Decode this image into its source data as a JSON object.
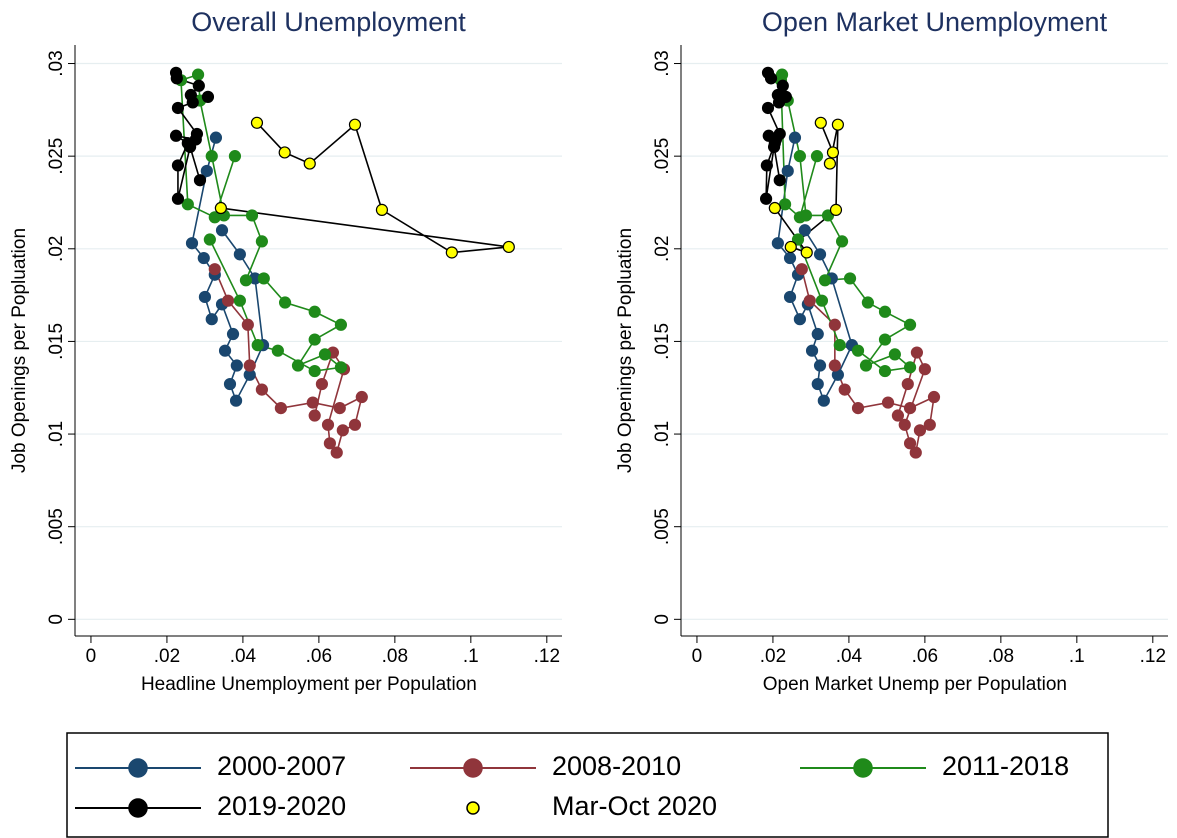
{
  "chart_data": [
    {
      "type": "scatter",
      "connected": true,
      "title": "Overall Unemployment",
      "x_label": "Headline Unemployment per Population",
      "y_label": "Job Openings per Popluation",
      "xlim": [
        -0.0042,
        0.124
      ],
      "ylim": [
        -0.0009,
        0.031
      ],
      "xticks": [
        0,
        {
          "value": 0.02,
          "label": ".02"
        },
        {
          "value": 0.04,
          "label": ".04"
        },
        {
          "value": 0.06,
          "label": ".06"
        },
        {
          "value": 0.08,
          "label": ".08"
        },
        {
          "value": 0.1,
          "label": ".1"
        },
        {
          "value": 0.12,
          "label": ".12"
        }
      ],
      "yticks": [
        0,
        {
          "value": 0.005,
          "label": ".005"
        },
        {
          "value": 0.01,
          "label": ".01"
        },
        {
          "value": 0.015,
          "label": ".015"
        },
        {
          "value": 0.02,
          "label": ".02"
        },
        {
          "value": 0.025,
          "label": ".025"
        },
        {
          "value": 0.03,
          "label": ".03"
        }
      ],
      "grid": true,
      "legend": "bottom",
      "series": [
        {
          "name": "2000-2007",
          "color": "#1a476f",
          "line_color": "#1a476f",
          "x": [
            0.0329,
            0.0305,
            0.0266,
            0.0297,
            0.0326,
            0.03,
            0.0318,
            0.0345,
            0.0374,
            0.0353,
            0.0384,
            0.0366,
            0.0382,
            0.0418,
            0.0453,
            0.0432,
            0.0392,
            0.0345
          ],
          "values": [
            0.026,
            0.0242,
            0.0203,
            0.0195,
            0.0186,
            0.0174,
            0.0162,
            0.017,
            0.0154,
            0.0145,
            0.0137,
            0.0127,
            0.0118,
            0.0132,
            0.0148,
            0.0184,
            0.0197,
            0.021
          ]
        },
        {
          "name": "2008-2010",
          "color": "#90353b",
          "line_color": "#90353b",
          "x": [
            0.0326,
            0.0361,
            0.0413,
            0.0418,
            0.045,
            0.05,
            0.0584,
            0.0655,
            0.0713,
            0.0695,
            0.0663,
            0.0647,
            0.0629,
            0.0624,
            0.0666,
            0.0637,
            0.0608,
            0.0589
          ],
          "values": [
            0.0189,
            0.0172,
            0.0159,
            0.0137,
            0.0124,
            0.0114,
            0.0117,
            0.0114,
            0.012,
            0.0105,
            0.0102,
            0.009,
            0.0095,
            0.0105,
            0.0135,
            0.0144,
            0.0127,
            0.011
          ]
        },
        {
          "name": "2011-2018",
          "color": "#1f8a1a",
          "line_color": "#1f8a1a",
          "x": [
            0.0379,
            0.0326,
            0.0255,
            0.0237,
            0.0282,
            0.0287,
            0.0318,
            0.035,
            0.0424,
            0.045,
            0.0408,
            0.0455,
            0.0511,
            0.0589,
            0.0658,
            0.0589,
            0.0545,
            0.0616,
            0.0658,
            0.0589,
            0.0492,
            0.0439,
            0.0392,
            0.0313
          ],
          "values": [
            0.025,
            0.0217,
            0.0224,
            0.0291,
            0.0294,
            0.028,
            0.025,
            0.0218,
            0.0218,
            0.0204,
            0.0183,
            0.0184,
            0.0171,
            0.0166,
            0.0159,
            0.0151,
            0.0137,
            0.0143,
            0.0136,
            0.0134,
            0.0145,
            0.0148,
            0.0172,
            0.0205
          ]
        },
        {
          "name": "2019-2020",
          "color": "#000000",
          "line_color": "#000000",
          "x": [
            0.0224,
            0.0226,
            0.0284,
            0.0263,
            0.0308,
            0.0268,
            0.0229,
            0.0279,
            0.0276,
            0.0224,
            0.0255,
            0.0229,
            0.0229,
            0.0261,
            0.0287
          ],
          "values": [
            0.0295,
            0.0292,
            0.0288,
            0.0283,
            0.0282,
            0.0279,
            0.0276,
            0.0262,
            0.0259,
            0.0261,
            0.0257,
            0.0245,
            0.0227,
            0.0255,
            0.0237
          ]
        },
        {
          "name": "Mar-Oct 2020",
          "color": "#ffff00",
          "line_color": "#000000",
          "legend_symbol": "marker",
          "x": [
            0.0342,
            0.11,
            0.095,
            0.0766,
            0.0695,
            0.0576,
            0.051,
            0.0437
          ],
          "values": [
            0.0222,
            0.0201,
            0.0198,
            0.0221,
            0.0267,
            0.0246,
            0.0252,
            0.0268
          ]
        }
      ]
    },
    {
      "type": "scatter",
      "connected": true,
      "title": "Open Market Unemployment",
      "x_label": "Open Market Unemp per Population",
      "y_label": "Job Openings per Popluation",
      "xlim": [
        -0.0042,
        0.124
      ],
      "ylim": [
        -0.0009,
        0.031
      ],
      "xticks": [
        0,
        {
          "value": 0.02,
          "label": ".02"
        },
        {
          "value": 0.04,
          "label": ".04"
        },
        {
          "value": 0.06,
          "label": ".06"
        },
        {
          "value": 0.08,
          "label": ".08"
        },
        {
          "value": 0.1,
          "label": ".1"
        },
        {
          "value": 0.12,
          "label": ".12"
        }
      ],
      "yticks": [
        0,
        {
          "value": 0.005,
          "label": ".005"
        },
        {
          "value": 0.01,
          "label": ".01"
        },
        {
          "value": 0.015,
          "label": ".015"
        },
        {
          "value": 0.02,
          "label": ".02"
        },
        {
          "value": 0.025,
          "label": ".025"
        },
        {
          "value": 0.03,
          "label": ".03"
        }
      ],
      "grid": true,
      "series": [
        {
          "color": "#1a476f",
          "line_color": "#1a476f",
          "x": [
            0.0258,
            0.0239,
            0.0213,
            0.0245,
            0.0266,
            0.0245,
            0.0271,
            0.0292,
            0.0318,
            0.0303,
            0.0324,
            0.0318,
            0.0334,
            0.0371,
            0.0408,
            0.0355,
            0.0324,
            0.0284
          ],
          "values": [
            0.026,
            0.0242,
            0.0203,
            0.0195,
            0.0186,
            0.0174,
            0.0162,
            0.017,
            0.0154,
            0.0145,
            0.0137,
            0.0127,
            0.0118,
            0.0132,
            0.0148,
            0.0184,
            0.0197,
            0.021
          ]
        },
        {
          "color": "#90353b",
          "line_color": "#90353b",
          "x": [
            0.0276,
            0.0297,
            0.0363,
            0.0363,
            0.0389,
            0.0424,
            0.0503,
            0.0561,
            0.0624,
            0.0613,
            0.0587,
            0.0576,
            0.0561,
            0.0547,
            0.06,
            0.0579,
            0.0555,
            0.0529
          ],
          "values": [
            0.0189,
            0.0172,
            0.0159,
            0.0137,
            0.0124,
            0.0114,
            0.0117,
            0.0114,
            0.012,
            0.0105,
            0.0102,
            0.009,
            0.0095,
            0.0105,
            0.0135,
            0.0144,
            0.0127,
            0.011
          ]
        },
        {
          "color": "#1f8a1a",
          "line_color": "#1f8a1a",
          "x": [
            0.0316,
            0.0271,
            0.0232,
            0.0221,
            0.0224,
            0.0239,
            0.0271,
            0.0287,
            0.0345,
            0.0382,
            0.0337,
            0.0403,
            0.045,
            0.0495,
            0.0561,
            0.0495,
            0.0445,
            0.0521,
            0.0561,
            0.0495,
            0.0424,
            0.0376,
            0.0329,
            0.0266
          ],
          "values": [
            0.025,
            0.0217,
            0.0224,
            0.0291,
            0.0294,
            0.028,
            0.025,
            0.0218,
            0.0218,
            0.0204,
            0.0183,
            0.0184,
            0.0171,
            0.0166,
            0.0159,
            0.0151,
            0.0137,
            0.0143,
            0.0136,
            0.0134,
            0.0145,
            0.0148,
            0.0172,
            0.0205
          ]
        },
        {
          "color": "#000000",
          "line_color": "#000000",
          "x": [
            0.0187,
            0.0195,
            0.0226,
            0.0213,
            0.0234,
            0.0216,
            0.0187,
            0.0218,
            0.0208,
            0.0189,
            0.0205,
            0.0184,
            0.0182,
            0.0203,
            0.0218
          ],
          "values": [
            0.0295,
            0.0292,
            0.0288,
            0.0283,
            0.0282,
            0.0279,
            0.0276,
            0.0262,
            0.0259,
            0.0261,
            0.0257,
            0.0245,
            0.0227,
            0.0255,
            0.0237
          ]
        },
        {
          "color": "#ffff00",
          "line_color": "#000000",
          "x": [
            0.0205,
            0.0289,
            0.0247,
            0.0366,
            0.0371,
            0.035,
            0.0358,
            0.0326
          ],
          "values": [
            0.0222,
            0.0198,
            0.0201,
            0.0221,
            0.0267,
            0.0246,
            0.0252,
            0.0268
          ]
        }
      ]
    }
  ]
}
